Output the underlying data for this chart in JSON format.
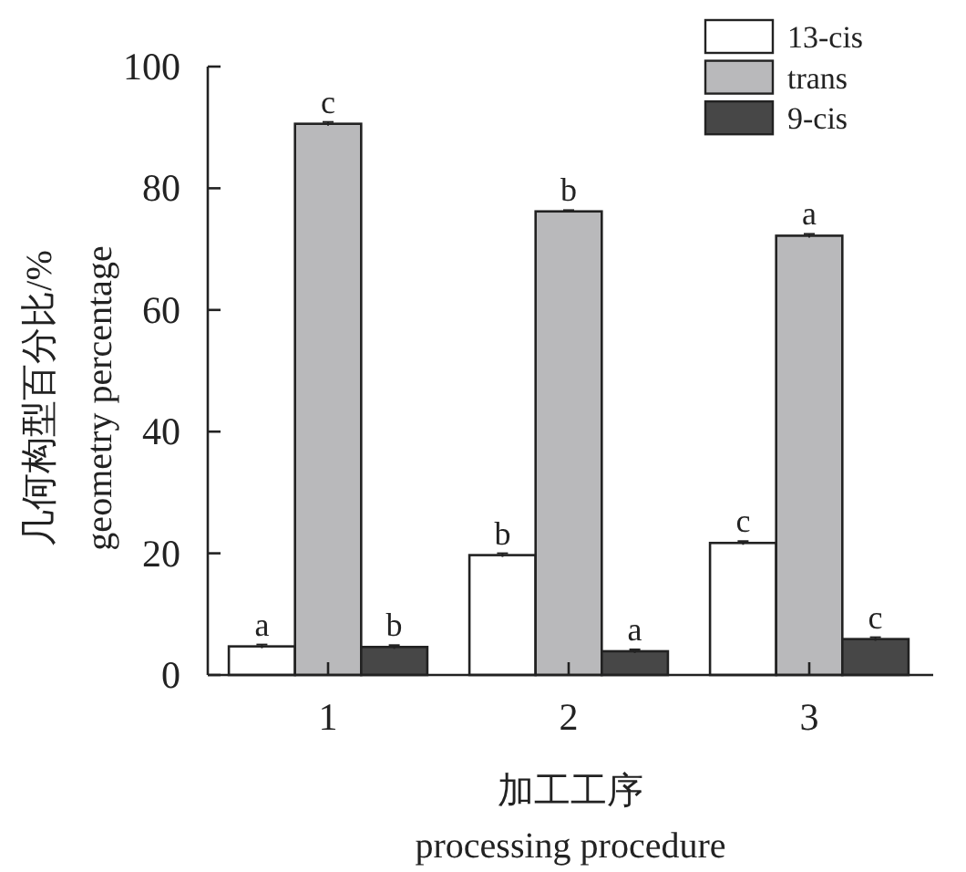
{
  "chart_data": {
    "type": "bar",
    "xlabel": "加工工序\nprocessing procedure",
    "ylabel": "几何构型百分比/%\ngeometry percentage",
    "categories": [
      "1",
      "2",
      "3"
    ],
    "ylim": [
      0,
      100
    ],
    "yticks": [
      0,
      20,
      40,
      60,
      80,
      100
    ],
    "legend": "top right",
    "series": [
      {
        "name": "13-cis",
        "color": "#ffffff",
        "values": [
          4.7,
          19.7,
          21.7
        ],
        "errors": [
          0.3,
          0.3,
          0.3
        ],
        "value_labels": [
          "a",
          "b",
          "c"
        ]
      },
      {
        "name": "trans",
        "color": "#b9b9bb",
        "values": [
          90.6,
          76.2,
          72.2
        ],
        "errors": [
          0.3,
          0.2,
          0.3
        ],
        "value_labels": [
          "c",
          "b",
          "a"
        ]
      },
      {
        "name": "9-cis",
        "color": "#474747",
        "values": [
          4.6,
          3.9,
          5.9
        ],
        "errors": [
          0.3,
          0.3,
          0.3
        ],
        "value_labels": [
          "b",
          "a",
          "c"
        ]
      }
    ]
  }
}
